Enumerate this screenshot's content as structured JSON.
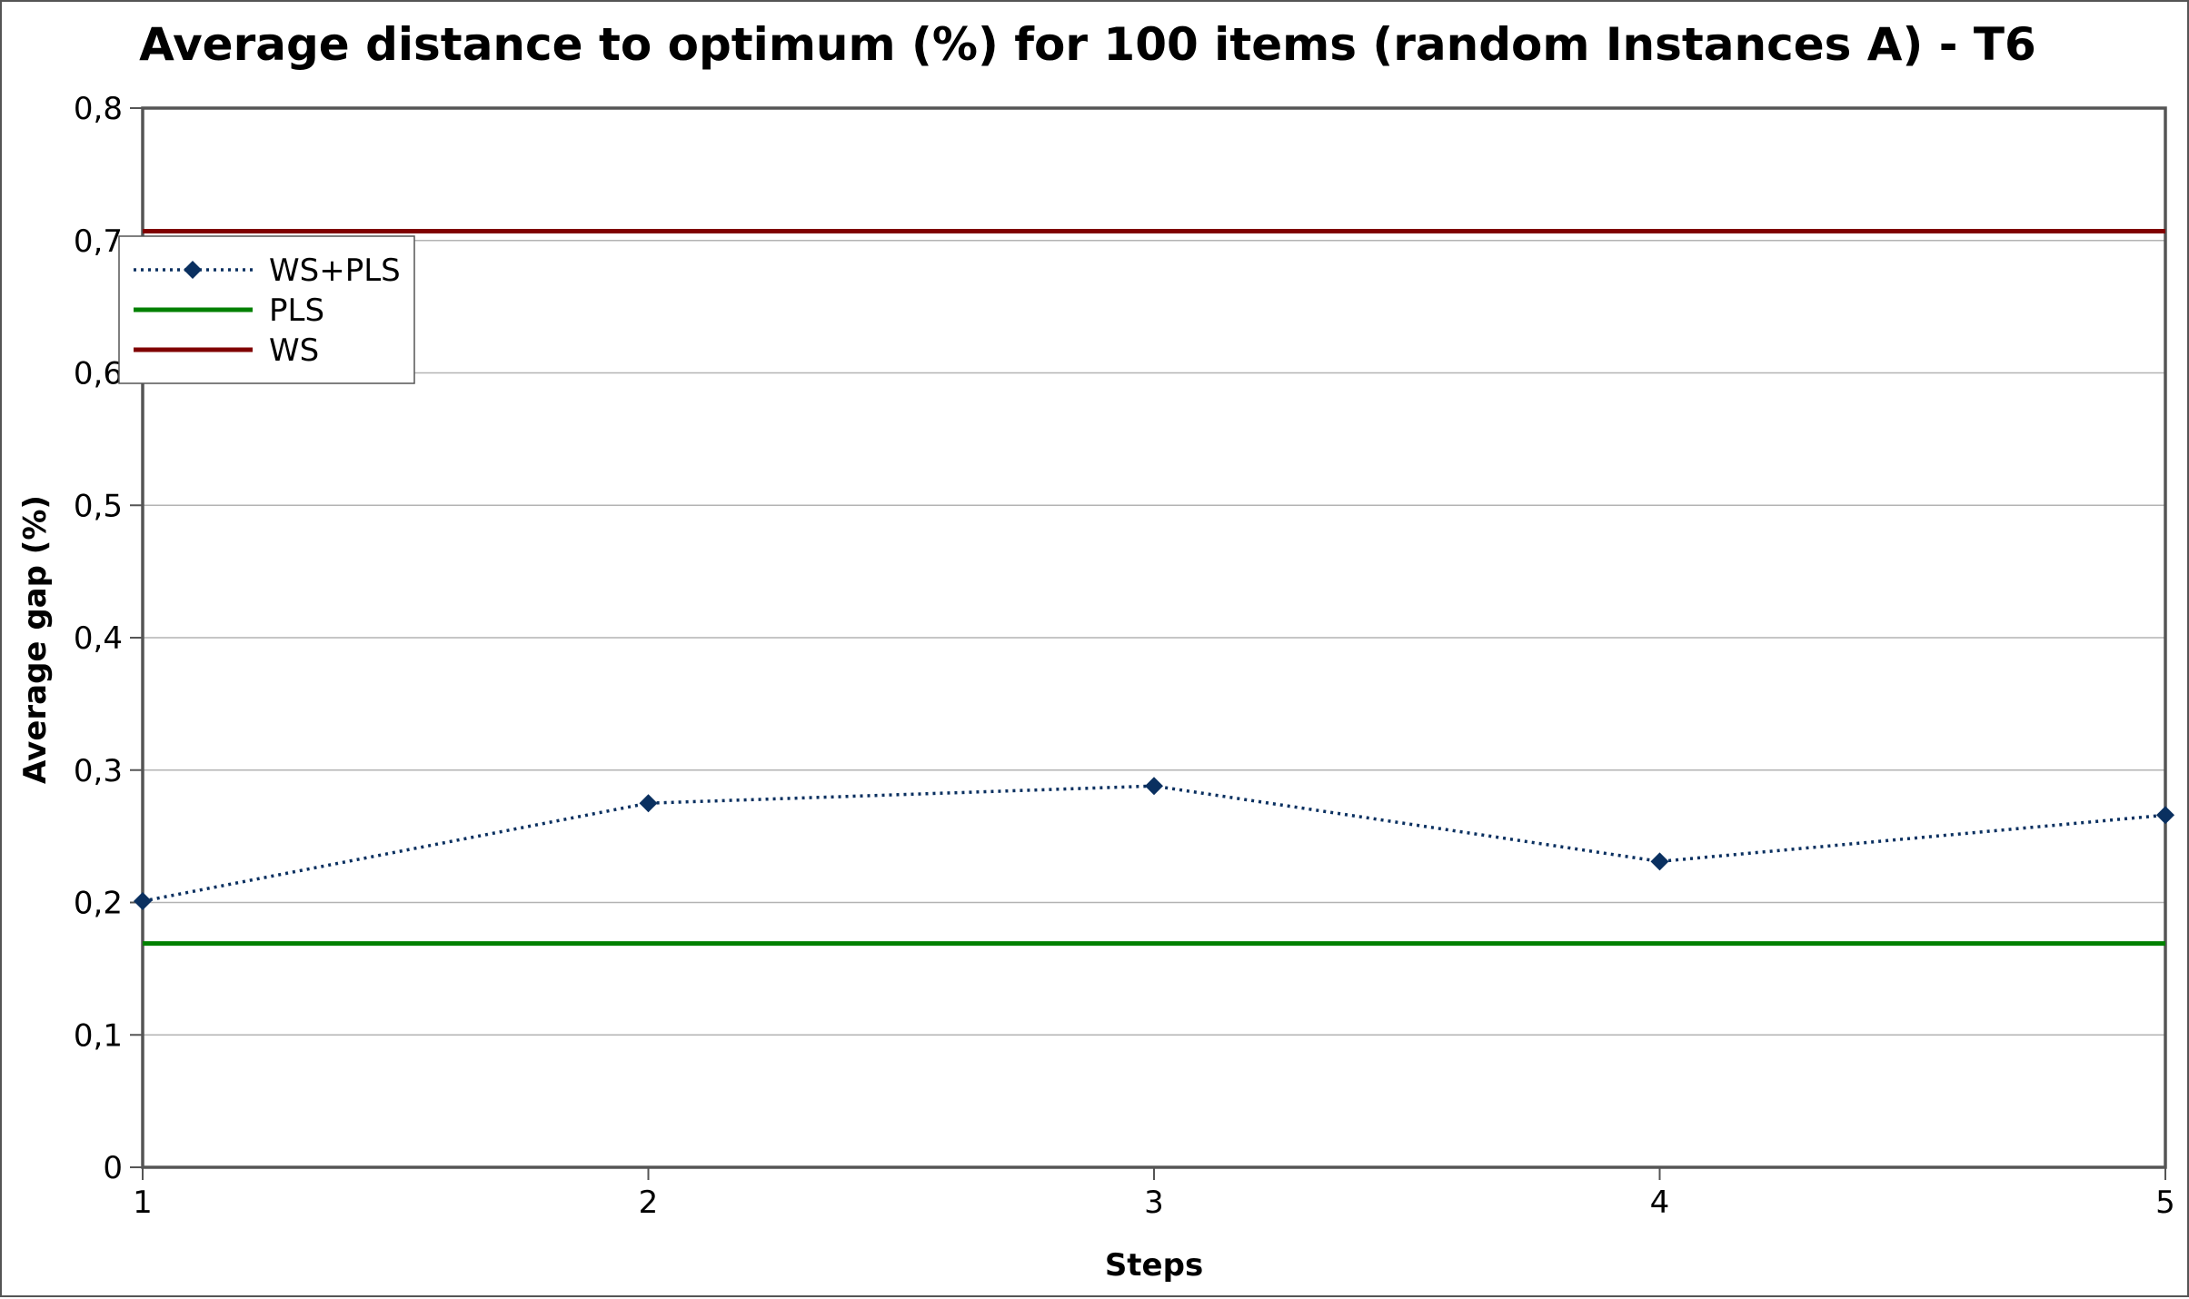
{
  "chart_data": {
    "type": "line",
    "title": "Average distance to optimum (%) for 100 items (random Instances A) - T6",
    "xlabel": "Steps",
    "ylabel": "Average gap  (%)",
    "categories": [
      "1",
      "2",
      "3",
      "4",
      "5"
    ],
    "ylim": [
      0,
      0.8
    ],
    "yticks": [
      0,
      0.1,
      0.2,
      0.3,
      0.4,
      0.5,
      0.6,
      0.7,
      0.8
    ],
    "ytick_labels": [
      "0",
      "0,1",
      "0,2",
      "0,3",
      "0,4",
      "0,5",
      "0,6",
      "0,7",
      "0,8"
    ],
    "grid": true,
    "legend_position": "top-left",
    "series": [
      {
        "name": "WS+PLS",
        "values": [
          0.201,
          0.275,
          0.288,
          0.231,
          0.266
        ],
        "color": "#0a3060",
        "style": "dotted-diamond"
      },
      {
        "name": "PLS",
        "values": [
          0.169,
          0.169,
          0.169,
          0.169,
          0.169
        ],
        "color": "#008000",
        "style": "solid"
      },
      {
        "name": "WS",
        "values": [
          0.707,
          0.707,
          0.707,
          0.707,
          0.707
        ],
        "color": "#800000",
        "style": "solid"
      }
    ]
  }
}
